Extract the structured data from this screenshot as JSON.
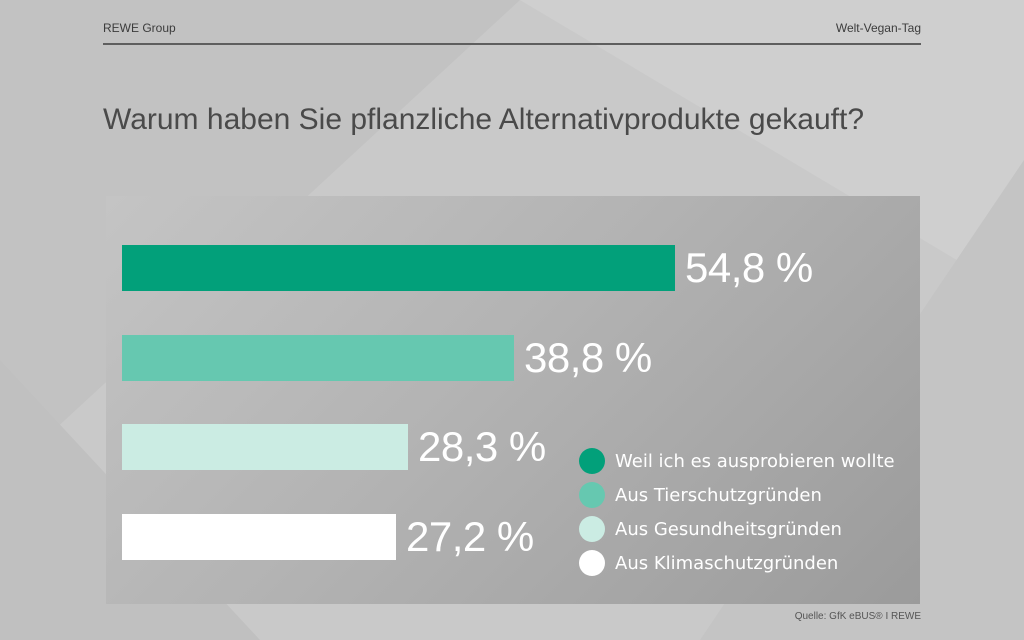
{
  "header": {
    "left": "REWE Group",
    "right": "Welt-Vegan-Tag"
  },
  "source": "Quelle: GfK eBUS® I REWE",
  "chart_data": {
    "type": "bar",
    "orientation": "horizontal",
    "title": "Warum haben Sie pflanzliche Alternativprodukte gekauft?",
    "categories": [
      "Weil ich es ausprobieren wollte",
      "Aus Tierschutzgründen",
      "Aus Gesundheitsgründen",
      "Aus Klimaschutzgründen"
    ],
    "values": [
      54.8,
      38.8,
      28.3,
      27.2
    ],
    "value_labels": [
      "54,8 %",
      "38,8 %",
      "28,3 %",
      "27,2 %"
    ],
    "colors": [
      "#02a07a",
      "#66c8b0",
      "#cbece3",
      "#ffffff"
    ],
    "xlim": [
      0,
      100
    ],
    "xlabel": "",
    "ylabel": "",
    "legend_position": "bottom-right",
    "grid": false
  }
}
